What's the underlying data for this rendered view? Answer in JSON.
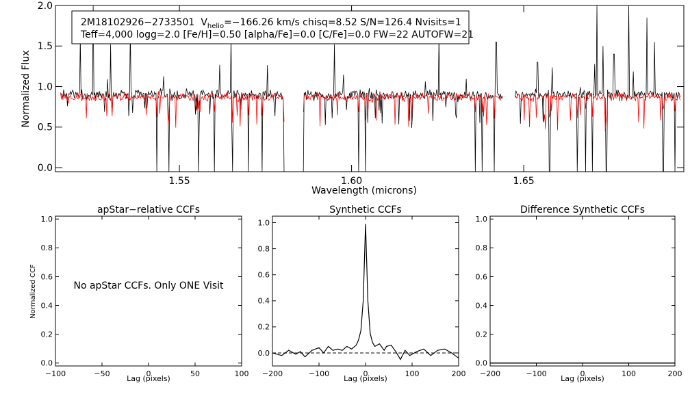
{
  "colors": {
    "axis": "#000000",
    "observed": "#000000",
    "model": "#ff0000",
    "background": "#ffffff"
  },
  "chart_data": [
    {
      "type": "line",
      "id": "spectrum",
      "title": "",
      "xlabel": "Wavelength (microns)",
      "ylabel": "Normalized Flux",
      "xlim": [
        1.514,
        1.6965
      ],
      "ylim": [
        -0.05,
        2.0
      ],
      "xticks": [
        1.55,
        1.6,
        1.65
      ],
      "xtick_labels": [
        "1.55",
        "1.60",
        "1.65"
      ],
      "yticks": [
        0.0,
        0.5,
        1.0,
        1.5,
        2.0
      ],
      "ytick_labels": [
        "0.0",
        "0.5",
        "1.0",
        "1.5",
        "2.0"
      ],
      "chips": [
        [
          1.5155,
          1.5805
        ],
        [
          1.586,
          1.644
        ],
        [
          1.6475,
          1.6955
        ]
      ],
      "series": [
        {
          "name": "observed",
          "color": "#000000",
          "level": 0.9,
          "noise": 0.06
        },
        {
          "name": "model",
          "color": "#ff0000",
          "level": 0.87,
          "noise": 0.05
        }
      ],
      "absorption_lines": [
        1.5435,
        1.547,
        1.5555,
        1.5602,
        1.5655,
        1.57,
        1.5741,
        1.5805,
        1.586,
        1.602,
        1.604,
        1.636,
        1.638,
        1.6415,
        1.6575,
        1.6655,
        1.668,
        1.67,
        1.674,
        1.6905,
        1.694
      ],
      "emission_spikes": [
        [
          1.5213,
          1.6
        ],
        [
          1.525,
          2.0
        ],
        [
          1.53,
          1.52
        ],
        [
          1.5358,
          1.7
        ],
        [
          1.565,
          1.6
        ],
        [
          1.595,
          1.52
        ],
        [
          1.6253,
          1.6
        ],
        [
          1.642,
          1.55
        ],
        [
          1.654,
          1.3
        ],
        [
          1.6712,
          2.0
        ],
        [
          1.673,
          1.5
        ],
        [
          1.6762,
          1.4
        ],
        [
          1.6805,
          2.0
        ],
        [
          1.6858,
          1.85
        ],
        [
          1.688,
          1.55
        ]
      ]
    },
    {
      "type": "line",
      "id": "apstar-ccf",
      "title": "apStar−relative CCFs",
      "xlabel": "Lag (pixels)",
      "ylabel": "Normalized CCF",
      "xlim": [
        -100,
        100
      ],
      "ylim": [
        -0.02,
        1.02
      ],
      "xticks": [
        -100,
        -50,
        0,
        50,
        100
      ],
      "xtick_labels": [
        "−100",
        "−50",
        "0",
        "50",
        "100"
      ],
      "yticks": [
        0.0,
        0.2,
        0.4,
        0.6,
        0.8,
        1.0
      ],
      "ytick_labels": [
        "0.0",
        "0.2",
        "0.4",
        "0.6",
        "0.8",
        "1.0"
      ],
      "series": [],
      "message": "No apStar CCFs.  Only ONE Visit"
    },
    {
      "type": "line",
      "id": "synthetic-ccf",
      "title": "Synthetic CCFs",
      "xlabel": "Lag (pixels)",
      "ylabel": "",
      "xlim": [
        -200,
        200
      ],
      "ylim": [
        -0.1,
        1.05
      ],
      "xticks": [
        -200,
        -100,
        0,
        100,
        200
      ],
      "xtick_labels": [
        "−200",
        "−100",
        "0",
        "100",
        "200"
      ],
      "yticks": [
        0.0,
        0.2,
        0.4,
        0.6,
        0.8,
        1.0
      ],
      "ytick_labels": [
        "0.0",
        "0.2",
        "0.4",
        "0.6",
        "0.8",
        "1.0"
      ],
      "baseline": 0.0,
      "series": [
        {
          "name": "ccf",
          "x": [
            -200,
            -180,
            -165,
            -150,
            -140,
            -130,
            -115,
            -100,
            -90,
            -80,
            -70,
            -60,
            -50,
            -40,
            -30,
            -20,
            -15,
            -10,
            -5,
            0,
            5,
            10,
            15,
            20,
            30,
            40,
            45,
            55,
            65,
            75,
            85,
            95,
            110,
            125,
            140,
            155,
            170,
            185,
            200
          ],
          "y": [
            0.0,
            -0.02,
            0.02,
            -0.01,
            0.01,
            -0.03,
            0.02,
            0.04,
            0.0,
            0.05,
            0.02,
            0.03,
            0.02,
            0.05,
            0.03,
            0.06,
            0.1,
            0.17,
            0.4,
            0.99,
            0.4,
            0.15,
            0.08,
            0.05,
            0.07,
            0.02,
            0.05,
            0.06,
            0.01,
            -0.05,
            0.02,
            -0.02,
            0.01,
            0.03,
            -0.02,
            0.02,
            0.03,
            0.0,
            -0.04
          ]
        }
      ]
    },
    {
      "type": "line",
      "id": "difference-ccf",
      "title": "Difference Synthetic CCFs",
      "xlabel": "Lag (pixels)",
      "ylabel": "",
      "xlim": [
        -200,
        200
      ],
      "ylim": [
        -0.02,
        1.02
      ],
      "xticks": [
        -200,
        -100,
        0,
        100,
        200
      ],
      "xtick_labels": [
        "−200",
        "−100",
        "0",
        "100",
        "200"
      ],
      "yticks": [
        0.0,
        0.2,
        0.4,
        0.6,
        0.8,
        1.0
      ],
      "ytick_labels": [
        "0.0",
        "0.2",
        "0.4",
        "0.6",
        "0.8",
        "1.0"
      ],
      "series": [
        {
          "name": "difference",
          "x": [
            -200,
            200
          ],
          "y": [
            0.0,
            0.0
          ]
        }
      ]
    }
  ],
  "info_box": {
    "star_id": "2M18102926−2733501",
    "v_label": "V",
    "v_subscript": "helio",
    "v_value": "=−166.26 km/s  chisq=8.52  S/N=126.4  Nvisits=1",
    "line2": "Teff=4,000 logg=2.0 [Fe/H]=0.50 [alpha/Fe]=0.0 [C/Fe]=0.0 FW=22 AUTOFW=21"
  }
}
